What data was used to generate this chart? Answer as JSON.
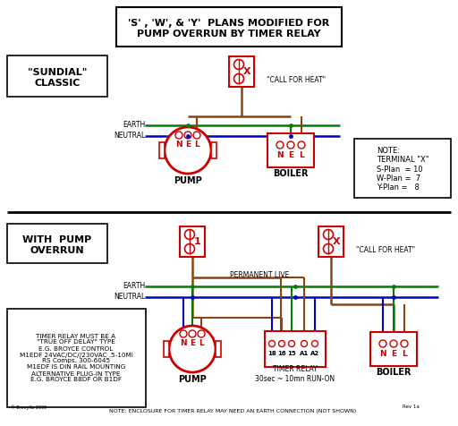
{
  "title": "'S' , 'W', & 'Y'  PLANS MODIFIED FOR\nPUMP OVERRUN BY TIMER RELAY",
  "background": "#ffffff",
  "section1_label": "\"SUNDIAL\"\nCLASSIC",
  "section2_label": "WITH  PUMP\nOVERRUN",
  "note_text": "NOTE:\nTERMINAL \"X\"\nS-Plan  = 10\nW-Plan =  7\nY-Plan =   8",
  "timer_note": "TIMER RELAY MUST BE A\n\"TRUE OFF DELAY\" TYPE\nE.G. BROYCE CONTROL\nM1EDF 24VAC/DC//230VAC .5-10MI\nRS Comps. 300-6045\nM1EDF IS DIN RAIL MOUNTING\nALTERNATIVE PLUG-IN TYPE\nE.G. BROYCE B8DF OR B1DF",
  "bottom_note": "NOTE: ENCLOSURE FOR TIMER RELAY MAY NEED AN EARTH CONNECTION (NOT SHOWN)",
  "timer_relay_label": "TIMER RELAY\n30sec ~ 10mn RUN-ON",
  "red": "#cc0000",
  "green": "#008000",
  "blue": "#0000cc",
  "brown": "#8B4513",
  "black": "#000000"
}
